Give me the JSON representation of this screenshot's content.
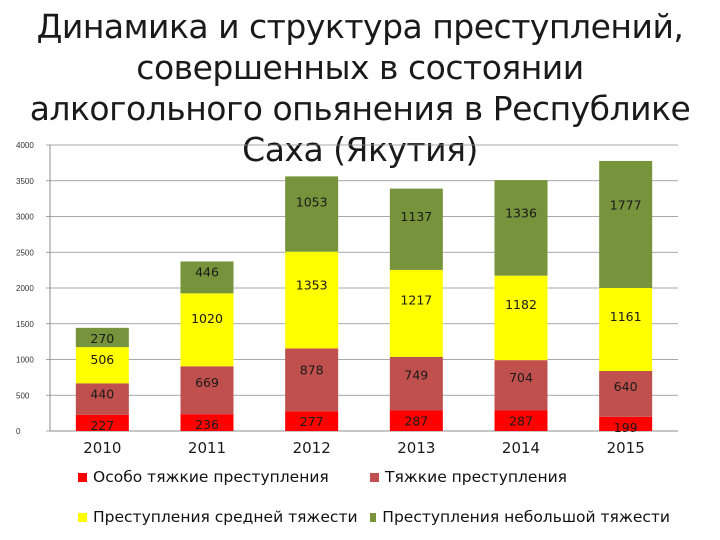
{
  "title": "Динамика и структура преступлений, совершенных в состоянии алкогольного опьянения в Республике Саха (Якутия)",
  "chart_data": {
    "type": "stacked-bar",
    "title": "Динамика и структура преступлений, совершенных в состоянии алкогольного опьянения в Республике Саха (Якутия)",
    "categories": [
      "2010",
      "2011",
      "2012",
      "2013",
      "2014",
      "2015"
    ],
    "ylim": [
      0,
      4000
    ],
    "yticks": [
      "0",
      "500",
      "1000",
      "1500",
      "2000",
      "2500",
      "3000",
      "3500",
      "4000"
    ],
    "gridlines": true,
    "legend_position": "bottom",
    "series": [
      {
        "name": "Особо тяжкие преступления",
        "color": "#ff0000",
        "values": [
          227,
          236,
          277,
          287,
          287,
          199
        ]
      },
      {
        "name": "Тяжкие преступления",
        "color": "#c0504d",
        "values": [
          440,
          669,
          878,
          749,
          704,
          640
        ]
      },
      {
        "name": "Преступления средней тяжести",
        "color": "#ffff00",
        "values": [
          506,
          1020,
          1353,
          1217,
          1182,
          1161
        ]
      },
      {
        "name": "Преступления небольшой тяжести",
        "color": "#77933c",
        "values": [
          270,
          446,
          1053,
          1137,
          1336,
          1777
        ]
      }
    ]
  }
}
